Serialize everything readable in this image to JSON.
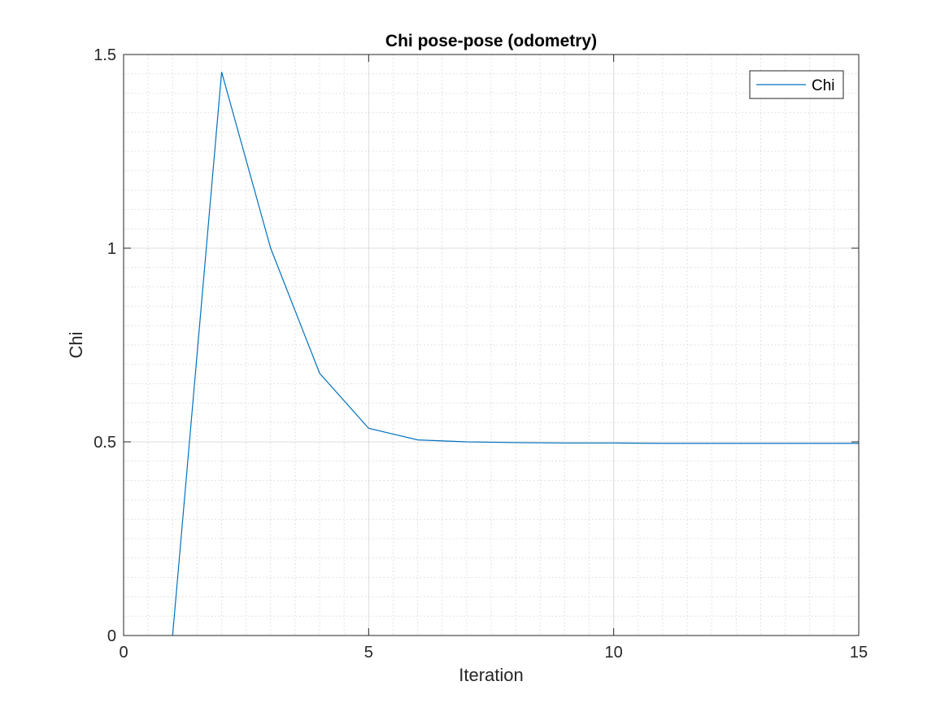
{
  "chart_data": {
    "type": "line",
    "title": "Chi pose-pose (odometry)",
    "xlabel": "Iteration",
    "ylabel": "Chi",
    "xlim": [
      0,
      15
    ],
    "ylim": [
      0,
      1.5
    ],
    "xticks": [
      0,
      5,
      10,
      15
    ],
    "yticks": [
      0,
      0.5,
      1,
      1.5
    ],
    "xtick_labels": [
      "0",
      "5",
      "10",
      "15"
    ],
    "ytick_labels": [
      "0",
      "0.5",
      "1",
      "1.5"
    ],
    "x_minor_step": 0.5,
    "y_minor_step": 0.05,
    "grid": true,
    "minor_grid": true,
    "legend_position": "top-right",
    "series": [
      {
        "name": "Chi",
        "color": "#0072bd",
        "x": [
          1,
          2,
          3,
          4,
          5,
          6,
          7,
          8,
          9,
          10,
          11,
          12,
          13,
          14,
          15
        ],
        "values": [
          0.0,
          1.455,
          1.0,
          0.677,
          0.535,
          0.505,
          0.5,
          0.498,
          0.497,
          0.497,
          0.496,
          0.496,
          0.496,
          0.496,
          0.496
        ]
      }
    ]
  }
}
